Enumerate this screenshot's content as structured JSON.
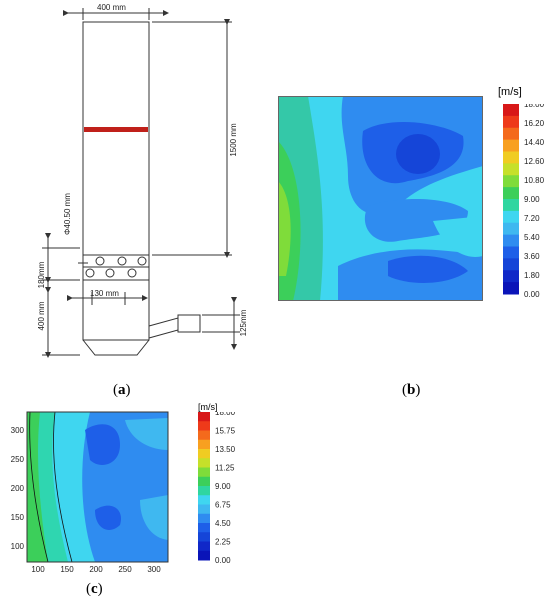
{
  "panel_a": {
    "label_open": "(",
    "label_letter": "a",
    "label_close": ")",
    "dims": {
      "width_top": "400 mm",
      "height_column": "1500 mm",
      "diameter": "Φ40.50 mm",
      "nozzle_height": "180mm",
      "nozzle_spacing": "130 mm",
      "bottom_height": "400 mm",
      "outlet_height": "125mm"
    }
  },
  "panel_b": {
    "label_open": "(",
    "label_letter": "b",
    "label_close": ")",
    "colorbar_unit": "[m/s]",
    "colorbar_ticks": [
      "18.00",
      "16.20",
      "14.40",
      "12.60",
      "10.80",
      "9.00",
      "7.20",
      "5.40",
      "3.60",
      "1.80",
      "0.00"
    ]
  },
  "panel_c": {
    "label_open": "(",
    "label_letter": "c",
    "label_close": ")",
    "colorbar_unit": "[m/s]",
    "colorbar_ticks": [
      "18.00",
      "15.75",
      "13.50",
      "11.25",
      "9.00",
      "6.75",
      "4.50",
      "2.25",
      "0.00"
    ],
    "x_ticks": [
      "100",
      "150",
      "200",
      "250",
      "300"
    ],
    "y_ticks": [
      "300",
      "250",
      "200",
      "150",
      "100"
    ]
  },
  "colors": {
    "line": "#333333",
    "red_band": "#c0201a",
    "field_blue_dark": "#1e5fe8",
    "field_blue": "#2f8cf0",
    "field_cyan": "#3fd6f0",
    "field_green": "#3ccf5a"
  }
}
